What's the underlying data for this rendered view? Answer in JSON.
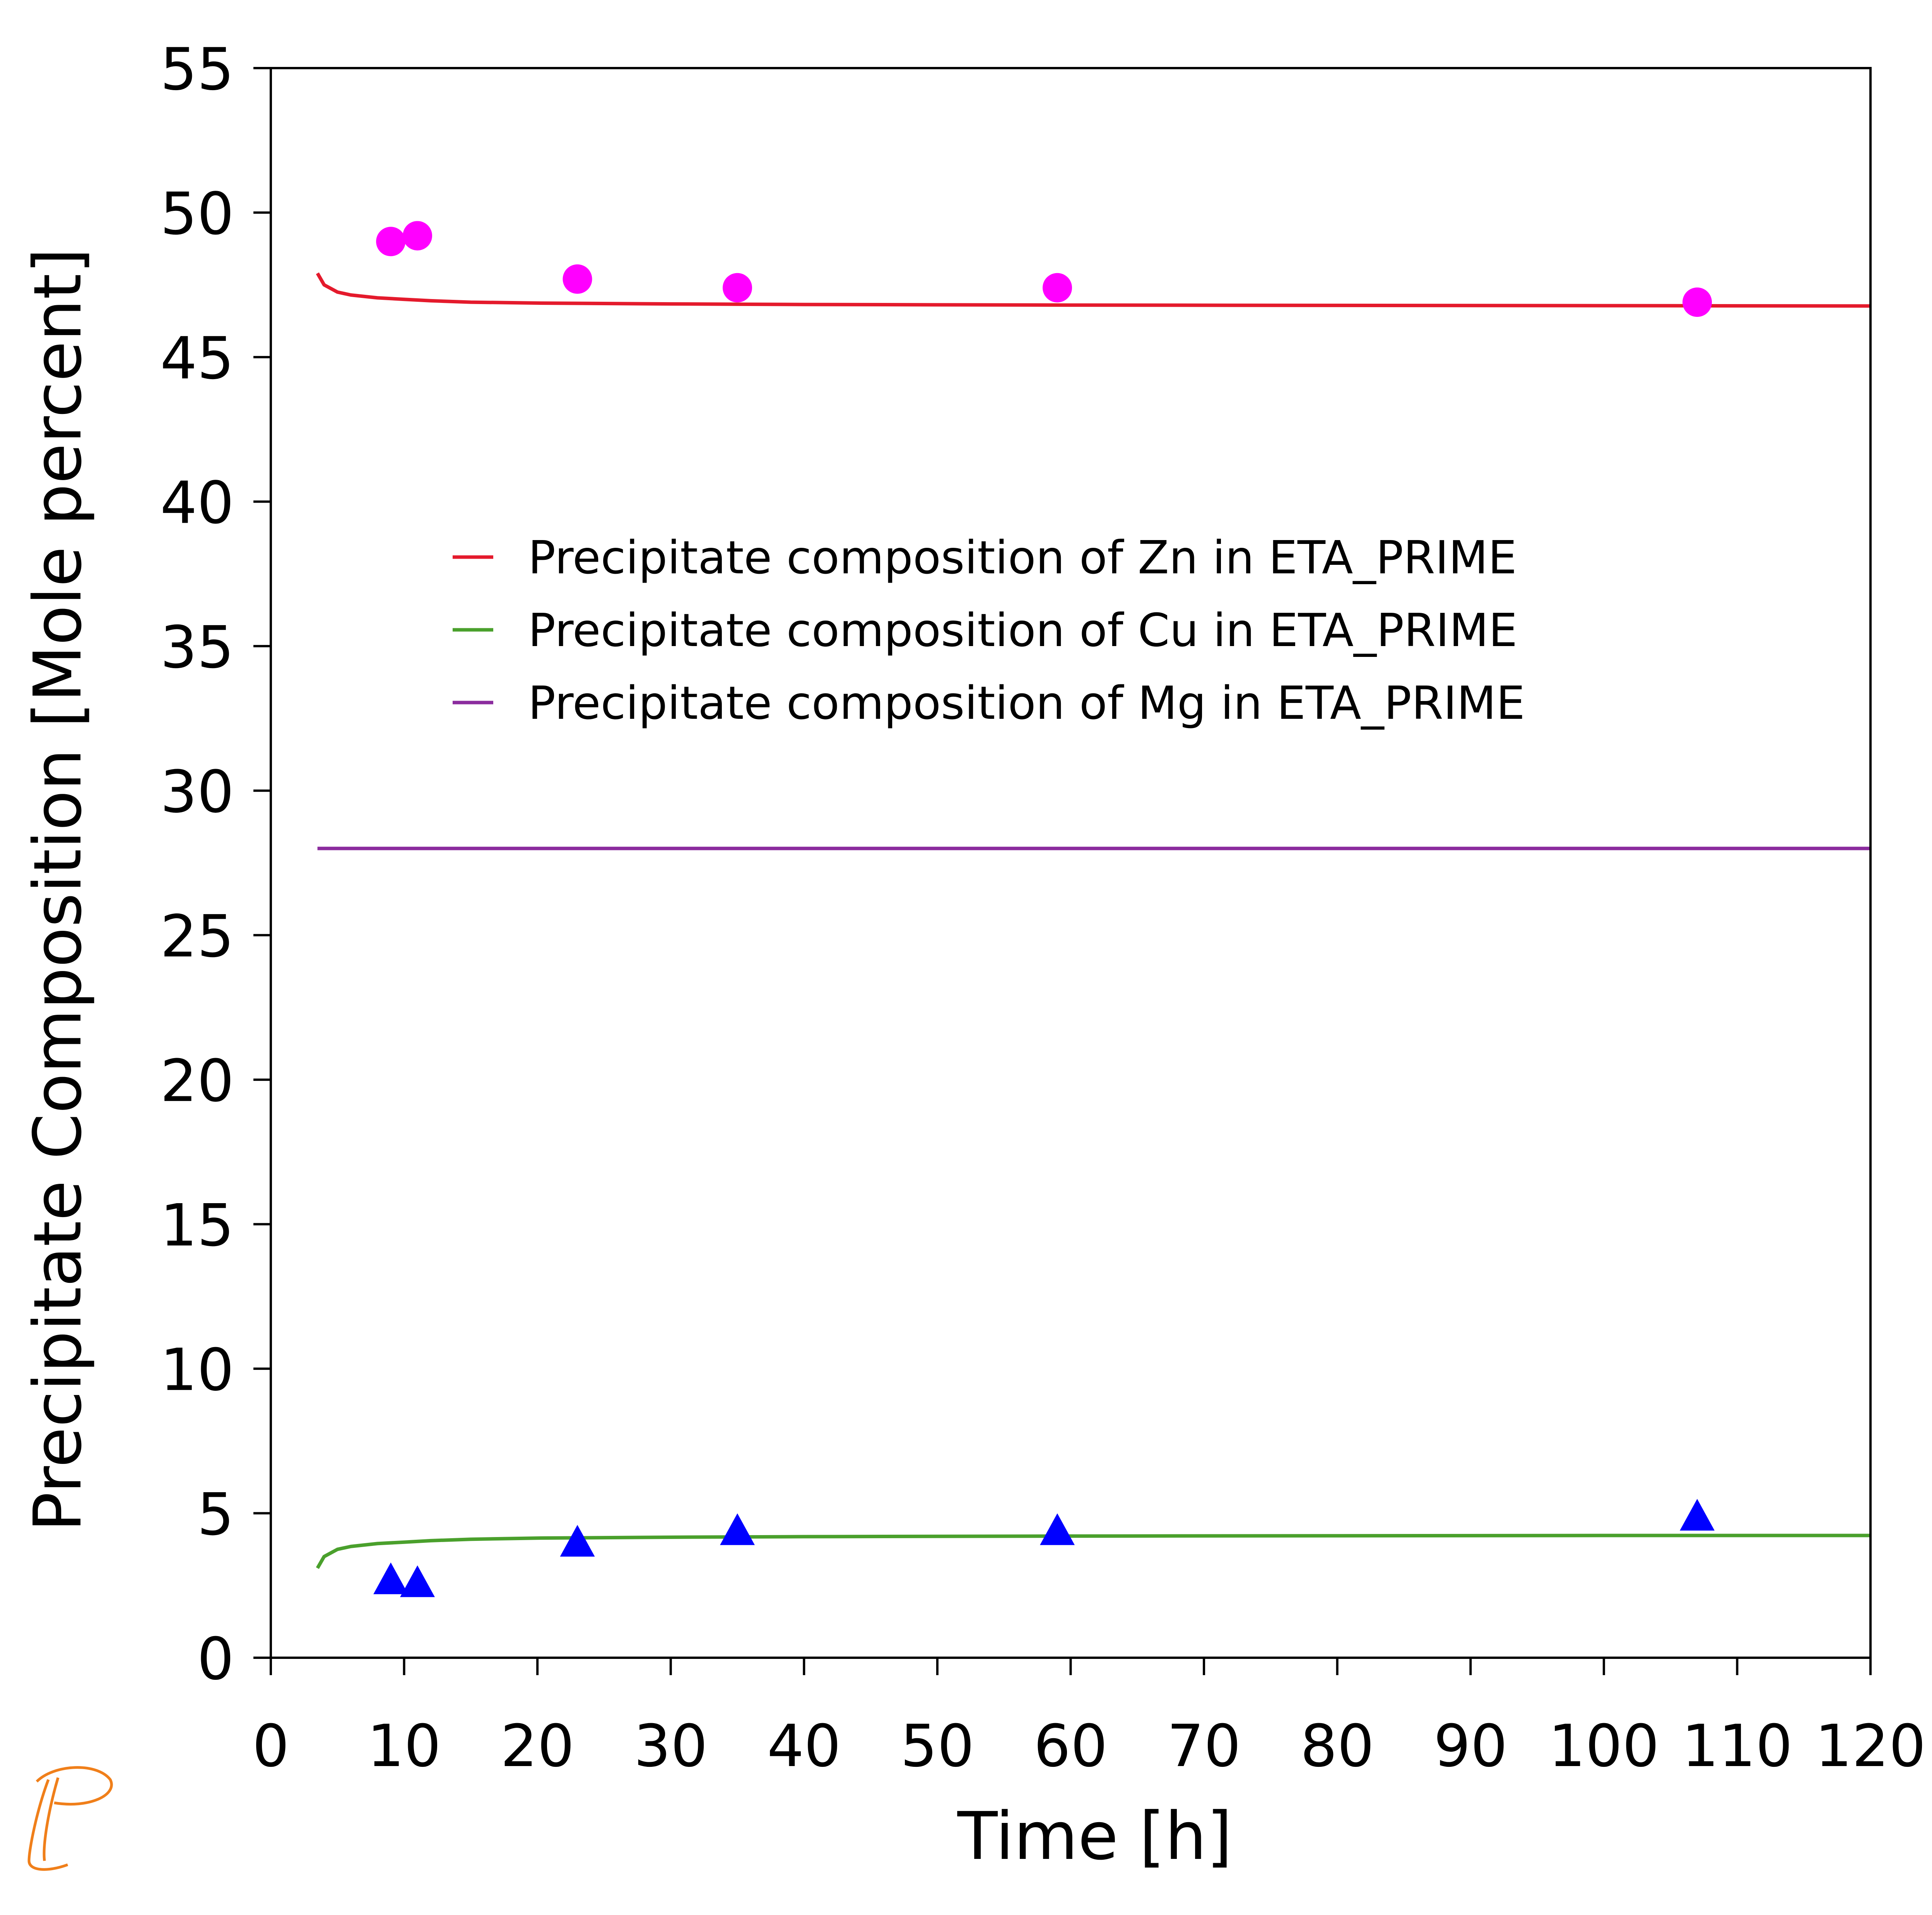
{
  "chart_data": {
    "type": "line",
    "title": "",
    "xlabel": "Time [h]",
    "ylabel": "Precipitate Composition [Mole percent]",
    "xlim": [
      0,
      120
    ],
    "ylim": [
      0,
      55
    ],
    "x_ticks": [
      0,
      10,
      20,
      30,
      40,
      50,
      60,
      70,
      80,
      90,
      100,
      110,
      120
    ],
    "y_ticks": [
      0,
      5,
      10,
      15,
      20,
      25,
      30,
      35,
      40,
      45,
      50,
      55
    ],
    "grid": false,
    "legend_position": "center",
    "series": [
      {
        "name": "Precipitate composition of Zn in ETA_PRIME",
        "color": "#e41a2c",
        "style": "line",
        "x": [
          3.5,
          4,
          5,
          6,
          8,
          10,
          12,
          15,
          20,
          30,
          40,
          60,
          80,
          100,
          120
        ],
        "y": [
          47.9,
          47.5,
          47.25,
          47.15,
          47.05,
          47.0,
          46.95,
          46.9,
          46.87,
          46.84,
          46.82,
          46.8,
          46.79,
          46.78,
          46.77
        ]
      },
      {
        "name": "Precipitate composition of Cu in ETA_PRIME",
        "color": "#4aa02c",
        "style": "line",
        "x": [
          3.5,
          4,
          5,
          6,
          8,
          10,
          12,
          15,
          20,
          30,
          40,
          60,
          80,
          100,
          120
        ],
        "y": [
          3.1,
          3.5,
          3.75,
          3.85,
          3.95,
          4.0,
          4.05,
          4.1,
          4.14,
          4.17,
          4.19,
          4.21,
          4.22,
          4.23,
          4.23
        ]
      },
      {
        "name": "Precipitate composition of Mg in ETA_PRIME",
        "color": "#8b2c9e",
        "style": "line",
        "x": [
          3.5,
          120
        ],
        "y": [
          28.0,
          28.0
        ]
      },
      {
        "color": "#ff00ff",
        "style": "marker-circle",
        "x": [
          9,
          11,
          23,
          35,
          59,
          107
        ],
        "y": [
          49.0,
          49.2,
          47.7,
          47.4,
          47.4,
          46.9
        ]
      },
      {
        "color": "#0000ff",
        "style": "marker-triangle",
        "x": [
          9,
          11,
          23,
          35,
          59,
          107
        ],
        "y": [
          2.6,
          2.5,
          3.9,
          4.3,
          4.3,
          4.8
        ]
      }
    ]
  },
  "logo": {
    "name": "thermo-calc-logo",
    "color": "#f07f1a"
  }
}
